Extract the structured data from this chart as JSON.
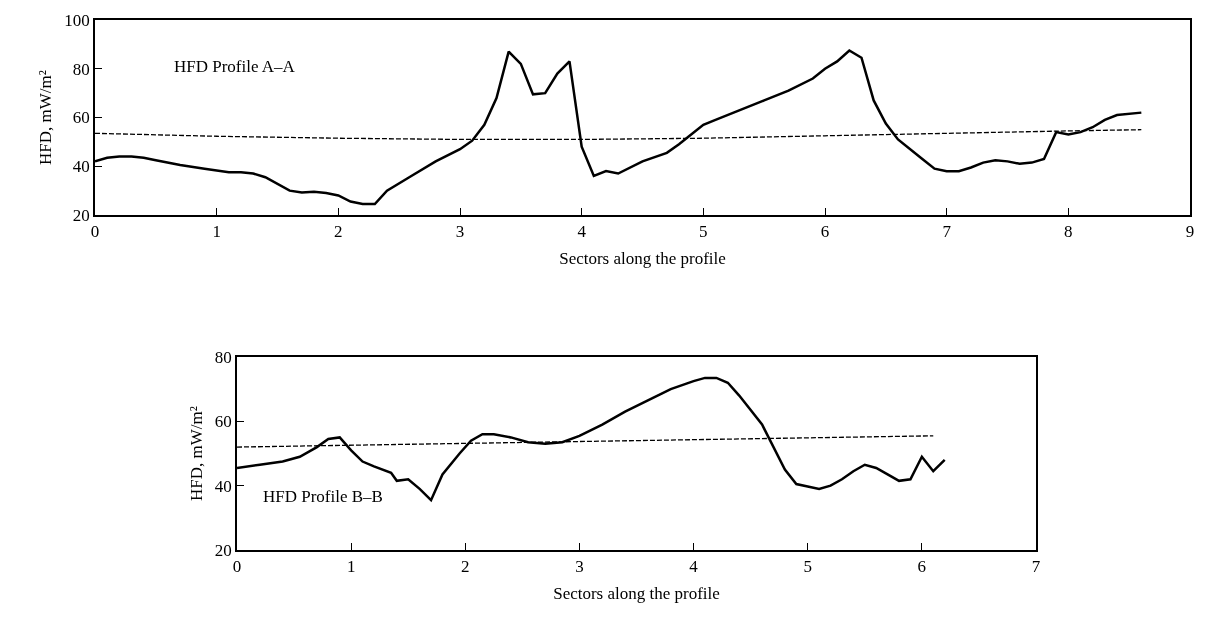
{
  "chart_data": [
    {
      "type": "line",
      "xlabel": "Sectors along the profile",
      "ylabel": "HFD, mW/m²",
      "annotations": [
        "HFD Profile A–A"
      ],
      "xlim": [
        0,
        9
      ],
      "xticks": [
        0,
        1,
        2,
        3,
        4,
        5,
        6,
        7,
        8,
        9
      ],
      "ylim": [
        20,
        100
      ],
      "yticks": [
        20,
        40,
        60,
        80,
        100
      ],
      "grid": false,
      "series": [
        {
          "color": "#000000",
          "line_style": "solid",
          "x": [
            0,
            0.1,
            0.2,
            0.3,
            0.4,
            0.5,
            0.7,
            0.9,
            1.1,
            1.2,
            1.3,
            1.4,
            1.6,
            1.7,
            1.8,
            1.9,
            2.0,
            2.1,
            2.2,
            2.3,
            2.4,
            2.6,
            2.8,
            3.0,
            3.1,
            3.2,
            3.3,
            3.4,
            3.5,
            3.6,
            3.7,
            3.8,
            3.9,
            4.0,
            4.1,
            4.2,
            4.3,
            4.5,
            4.7,
            4.8,
            4.9,
            5.0,
            5.1,
            5.3,
            5.5,
            5.7,
            5.9,
            6.0,
            6.1,
            6.2,
            6.3,
            6.4,
            6.5,
            6.6,
            6.8,
            6.9,
            7.0,
            7.1,
            7.2,
            7.3,
            7.4,
            7.5,
            7.6,
            7.7,
            7.8,
            7.9,
            8.0,
            8.1,
            8.2,
            8.3,
            8.4,
            8.6
          ],
          "values": [
            42,
            43.5,
            44,
            44,
            43.5,
            42.5,
            40.5,
            39,
            37.5,
            37.5,
            37,
            35.5,
            30,
            29.2,
            29.5,
            29,
            28,
            25.5,
            24.5,
            24.5,
            30,
            36,
            42,
            47,
            50.5,
            57,
            68,
            87,
            82,
            69.5,
            70,
            78,
            83,
            48,
            36,
            38,
            37,
            42,
            45.5,
            49,
            53,
            57,
            59,
            63,
            67,
            71,
            76,
            80,
            83,
            87.5,
            84.5,
            67,
            57.5,
            51,
            43,
            39,
            38,
            38,
            39.5,
            41.5,
            42.5,
            42,
            41,
            41.5,
            43,
            54,
            53,
            54,
            56,
            59,
            61,
            62
          ]
        },
        {
          "color": "#000000",
          "line_style": "dashed",
          "x": [
            0,
            1,
            2,
            3,
            4,
            5,
            6,
            7,
            8,
            8.6
          ],
          "values": [
            53.5,
            52.3,
            51.5,
            51,
            51,
            51.5,
            52.5,
            53.5,
            54.5,
            55
          ]
        }
      ]
    },
    {
      "type": "line",
      "xlabel": "Sectors along the profile",
      "ylabel": "HFD, mW/m²",
      "annotations": [
        "HFD Profile B–B"
      ],
      "xlim": [
        0,
        7
      ],
      "xticks": [
        0,
        1,
        2,
        3,
        4,
        5,
        6,
        7
      ],
      "ylim": [
        20,
        80
      ],
      "yticks": [
        20,
        40,
        60,
        80
      ],
      "grid": false,
      "series": [
        {
          "color": "#000000",
          "line_style": "solid",
          "x": [
            0,
            0.2,
            0.4,
            0.55,
            0.7,
            0.8,
            0.9,
            1.0,
            1.1,
            1.2,
            1.35,
            1.4,
            1.5,
            1.6,
            1.7,
            1.8,
            1.95,
            2.05,
            2.15,
            2.25,
            2.4,
            2.55,
            2.7,
            2.85,
            3.0,
            3.2,
            3.4,
            3.6,
            3.8,
            4.0,
            4.1,
            4.2,
            4.3,
            4.4,
            4.6,
            4.8,
            4.9,
            5.1,
            5.2,
            5.3,
            5.4,
            5.5,
            5.6,
            5.7,
            5.8,
            5.9,
            6.0,
            6.1,
            6.2
          ],
          "values": [
            45.5,
            46.5,
            47.5,
            49,
            52,
            54.5,
            55,
            51,
            47.5,
            46,
            44,
            41.5,
            42,
            39,
            35.5,
            43.5,
            50,
            54,
            56,
            56,
            55,
            53.5,
            53,
            53.5,
            55.5,
            59,
            63,
            66.5,
            70,
            72.5,
            73.5,
            73.5,
            72,
            68,
            59,
            45,
            40.5,
            39,
            40,
            42,
            44.5,
            46.5,
            45.5,
            43.5,
            41.5,
            42,
            49,
            44.5,
            48
          ]
        },
        {
          "color": "#000000",
          "line_style": "dashed",
          "x": [
            0,
            6.1
          ],
          "values": [
            52,
            55.5
          ]
        }
      ]
    }
  ]
}
